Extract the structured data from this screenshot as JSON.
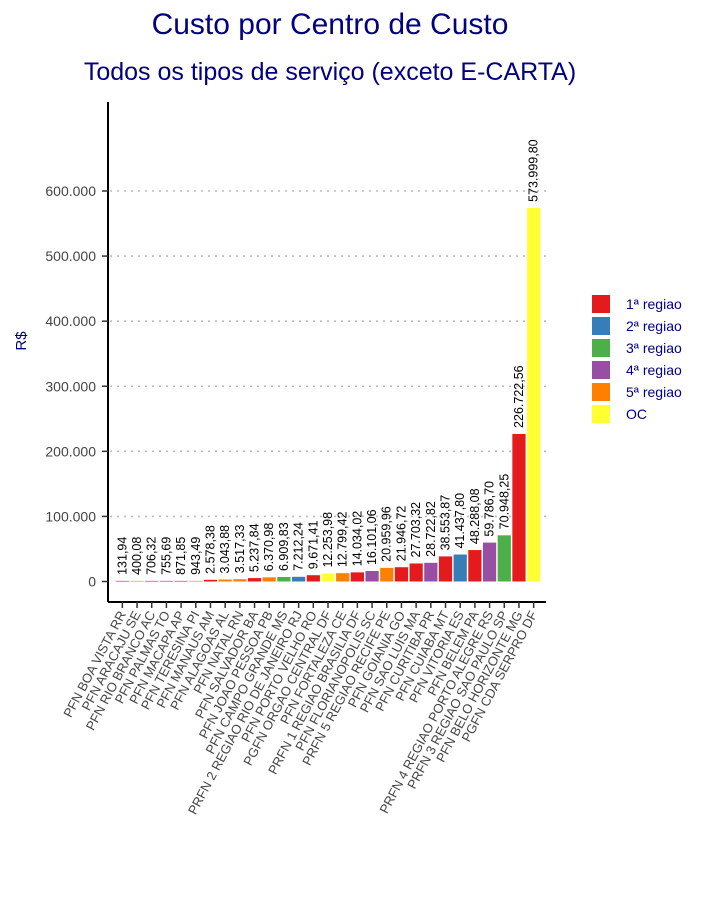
{
  "title": "Custo por Centro de Custo",
  "subtitle": "Todos os tipos de serviço (exceto E-CARTA)",
  "chart_data": {
    "type": "bar",
    "title": "Custo por Centro de Custo",
    "subtitle": "Todos os tipos de serviço (exceto E-CARTA)",
    "xlabel": "",
    "ylabel": "R$",
    "ylim": [
      0,
      700000
    ],
    "yticks": [
      0,
      100000,
      200000,
      300000,
      400000,
      500000,
      600000
    ],
    "ytick_labels": [
      "0",
      "100.000",
      "200.000",
      "300.000",
      "400.000",
      "500.000",
      "600.000"
    ],
    "grid": "horizontal-dotted",
    "legend_position": "right",
    "groups": [
      {
        "name": "1ª regiao",
        "color": "#E41A1C"
      },
      {
        "name": "2ª regiao",
        "color": "#377EB8"
      },
      {
        "name": "3ª regiao",
        "color": "#4DAF4A"
      },
      {
        "name": "4ª regiao",
        "color": "#984EA3"
      },
      {
        "name": "5ª regiao",
        "color": "#FF7F00"
      },
      {
        "name": "OC",
        "color": "#FFFF33"
      }
    ],
    "bars": [
      {
        "category": "PFN BOA VISTA RR",
        "value": 131.94,
        "label": "131,94",
        "group": "1ª regiao"
      },
      {
        "category": "PFN ARACAJU SE",
        "value": 400.08,
        "label": "400,08",
        "group": "5ª regiao"
      },
      {
        "category": "PFN RIO BRANCO AC",
        "value": 706.32,
        "label": "706,32",
        "group": "1ª regiao"
      },
      {
        "category": "PFN PALMAS TO",
        "value": 755.69,
        "label": "755,69",
        "group": "1ª regiao"
      },
      {
        "category": "PFN MACAPA AP",
        "value": 871.85,
        "label": "871,85",
        "group": "1ª regiao"
      },
      {
        "category": "PFN TERESINA PI",
        "value": 943.49,
        "label": "943,49",
        "group": "5ª regiao"
      },
      {
        "category": "PFN MANAUS AM",
        "value": 2578.38,
        "label": "2.578,38",
        "group": "1ª regiao"
      },
      {
        "category": "PFN ALAGOAS AL",
        "value": 3043.88,
        "label": "3.043,88",
        "group": "5ª regiao"
      },
      {
        "category": "PFN NATAL RN",
        "value": 3517.33,
        "label": "3.517,33",
        "group": "5ª regiao"
      },
      {
        "category": "PFN SALVADOR BA",
        "value": 5237.84,
        "label": "5.237,84",
        "group": "1ª regiao"
      },
      {
        "category": "PFN JOAO PESSOA PB",
        "value": 6370.98,
        "label": "6.370,98",
        "group": "5ª regiao"
      },
      {
        "category": "PFN CAMPO GRANDE MS",
        "value": 6909.83,
        "label": "6.909,83",
        "group": "3ª regiao"
      },
      {
        "category": "PRFN 2 REGIAO RIO DE JANEIRO RJ",
        "value": 7212.24,
        "label": "7.212,24",
        "group": "2ª regiao"
      },
      {
        "category": "PFN PORTO VELHO RO",
        "value": 9671.41,
        "label": "9.671,41",
        "group": "1ª regiao"
      },
      {
        "category": "PGFN ORGAO CENTRAL DF",
        "value": 12253.98,
        "label": "12.253,98",
        "group": "OC"
      },
      {
        "category": "PFN FORTALEZA CE",
        "value": 12799.42,
        "label": "12.799,42",
        "group": "5ª regiao"
      },
      {
        "category": "PRFN 1 REGIAO BRASILIA DF",
        "value": 14034.02,
        "label": "14.034,02",
        "group": "1ª regiao"
      },
      {
        "category": "PFN FLORIANOPOLIS SC",
        "value": 16101.06,
        "label": "16.101,06",
        "group": "4ª regiao"
      },
      {
        "category": "PRFN 5 REGIAO RECIFE PE",
        "value": 20959.96,
        "label": "20.959,96",
        "group": "5ª regiao"
      },
      {
        "category": "PFN GOIANIA GO",
        "value": 21946.72,
        "label": "21.946,72",
        "group": "1ª regiao"
      },
      {
        "category": "PFN SAO LUIS MA",
        "value": 27703.32,
        "label": "27.703,32",
        "group": "1ª regiao"
      },
      {
        "category": "PFN CURITIBA PR",
        "value": 28722.82,
        "label": "28.722,82",
        "group": "4ª regiao"
      },
      {
        "category": "PFN CUIABA MT",
        "value": 38553.87,
        "label": "38.553,87",
        "group": "1ª regiao"
      },
      {
        "category": "PFN VITORIA ES",
        "value": 41437.8,
        "label": "41.437,80",
        "group": "2ª regiao"
      },
      {
        "category": "PFN BELEM PA",
        "value": 48288.08,
        "label": "48.288,08",
        "group": "1ª regiao"
      },
      {
        "category": "PRFN 4 REGIAO PORTO ALEGRE RS",
        "value": 59786.7,
        "label": "59.786,70",
        "group": "4ª regiao"
      },
      {
        "category": "PRFN 3 REGIAO SAO PAULO SP",
        "value": 70948.25,
        "label": "70.948,25",
        "group": "3ª regiao"
      },
      {
        "category": "PFN BELO HORIZONTE MG",
        "value": 226722.56,
        "label": "226.722,56",
        "group": "1ª regiao"
      },
      {
        "category": "PGFN CDA SERPRO DF",
        "value": 573999.8,
        "label": "573.999,80",
        "group": "OC"
      }
    ]
  }
}
